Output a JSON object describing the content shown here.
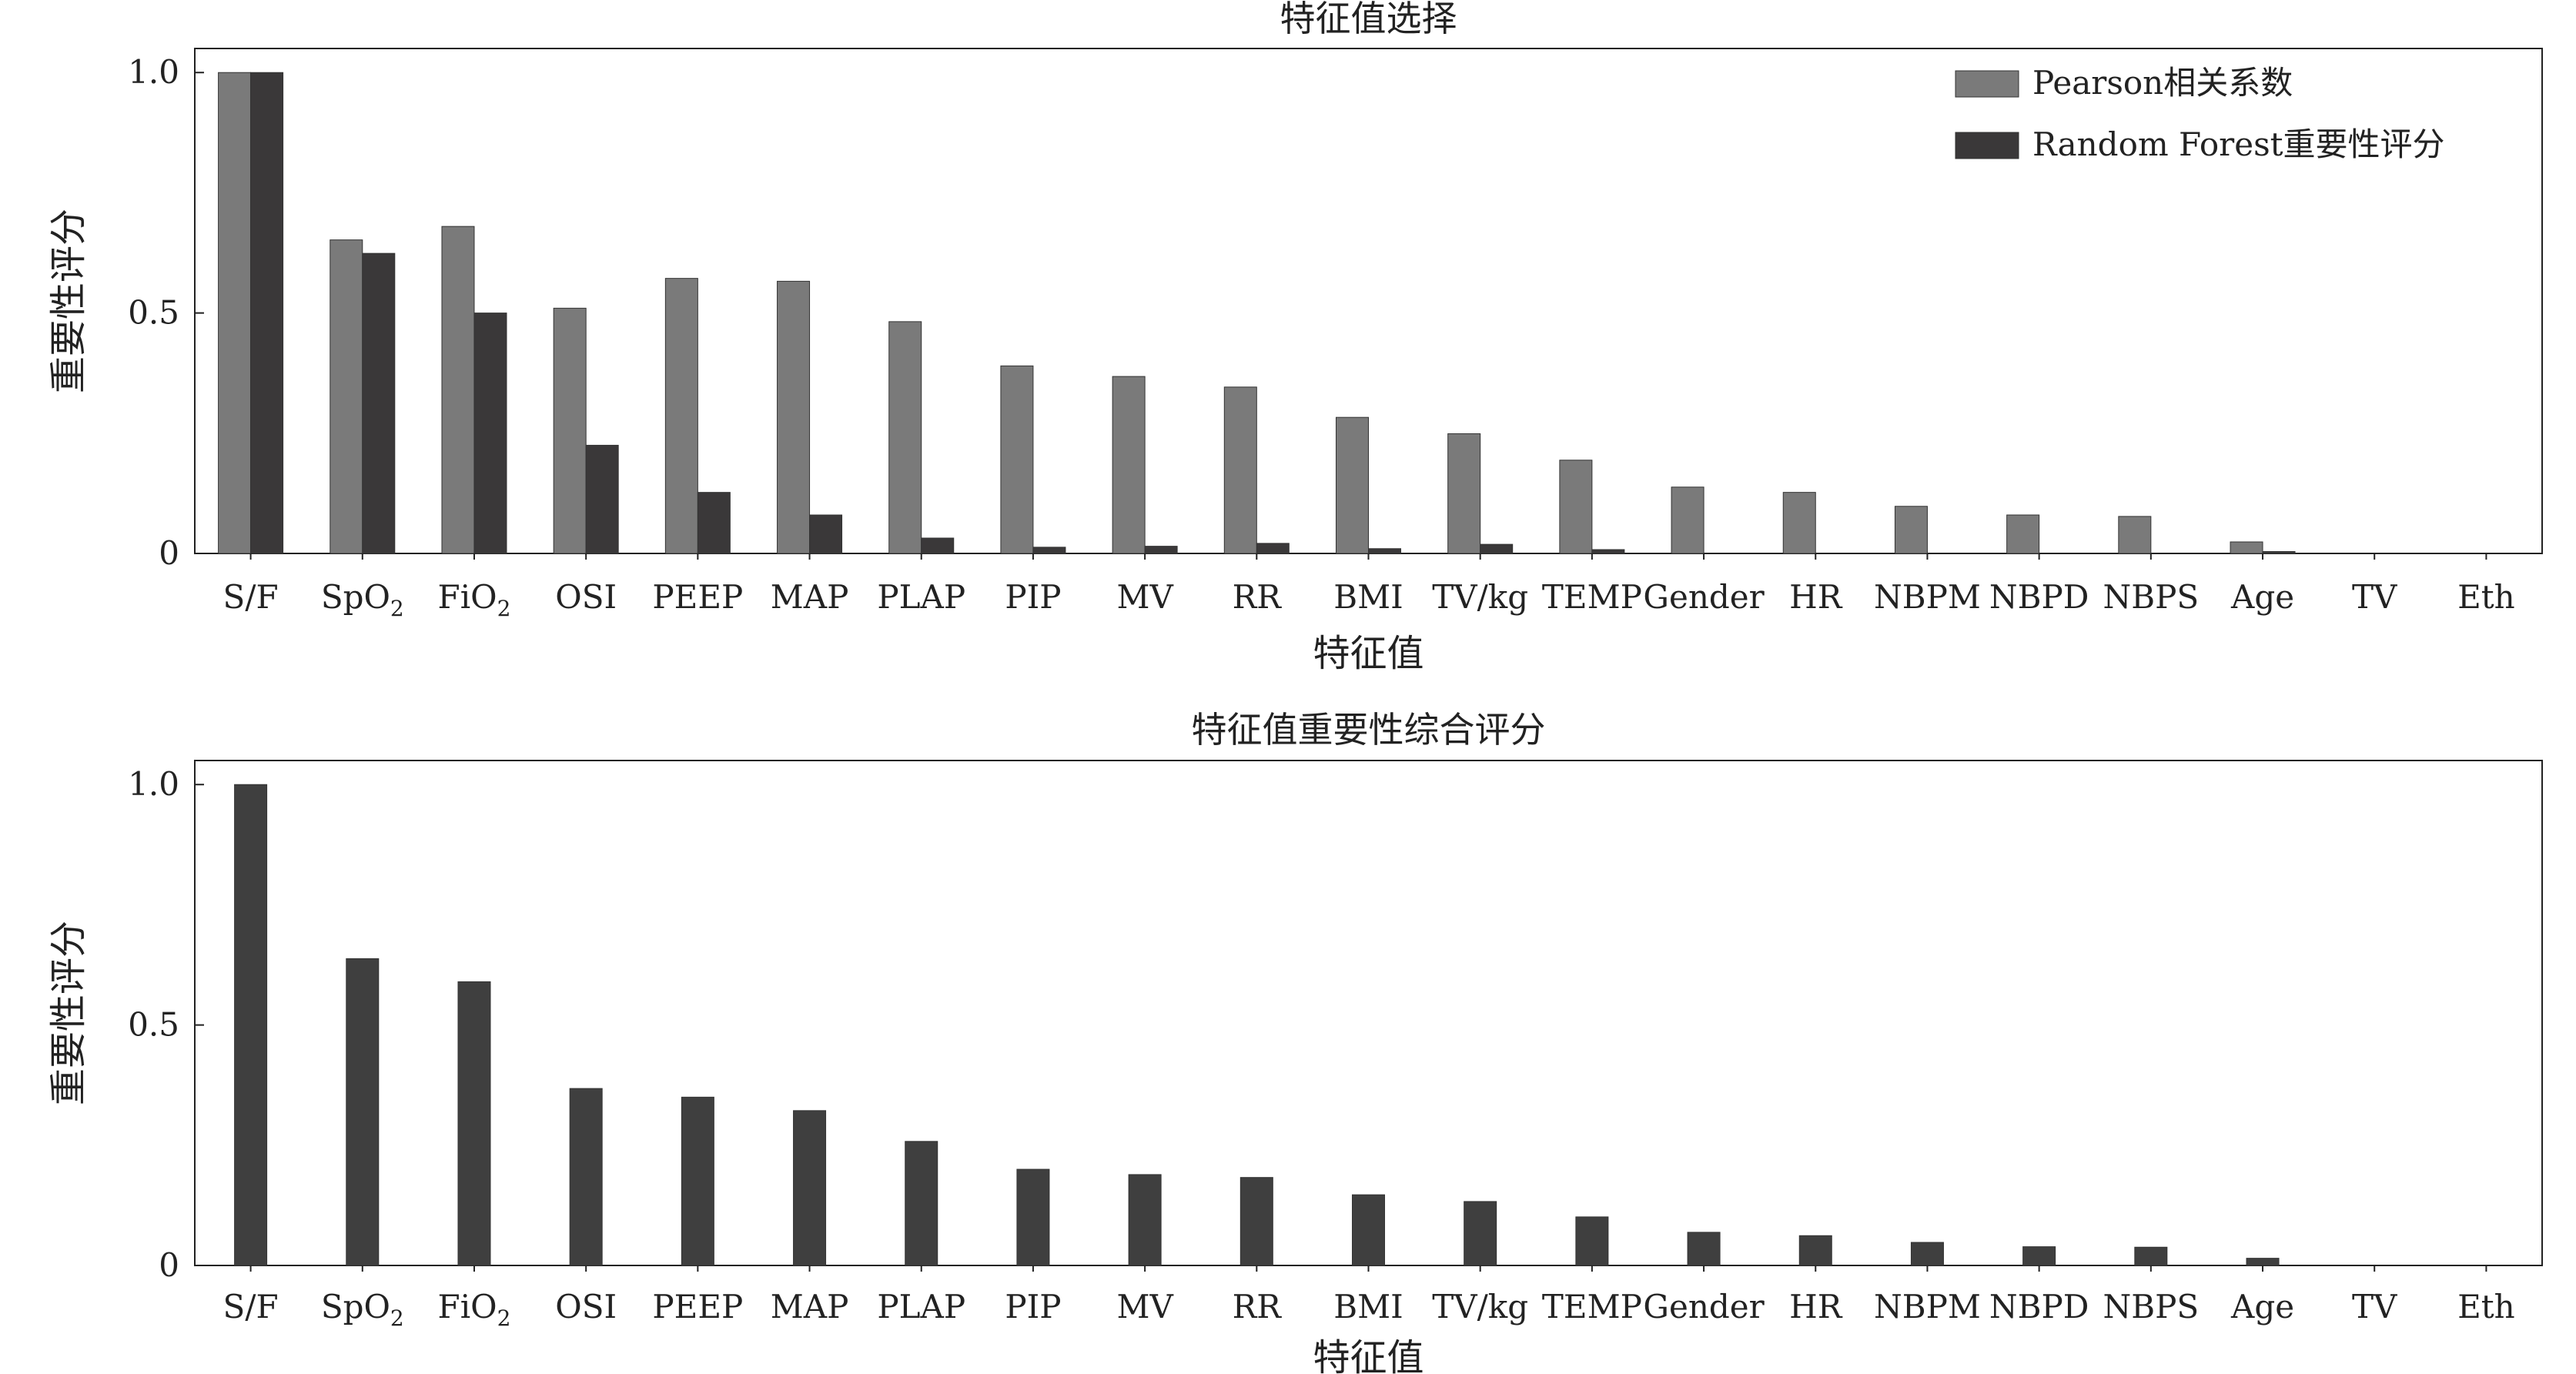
{
  "chart_data": [
    {
      "type": "bar",
      "title": "特征值选择",
      "xlabel": "特征值",
      "ylabel": "重要性评分",
      "ylim": [
        0,
        1.05
      ],
      "yticks": [
        "0",
        "0.5",
        "1.0"
      ],
      "categories": [
        "S/F",
        "SpO2",
        "FiO2",
        "OSI",
        "PEEP",
        "MAP",
        "PLAP",
        "PIP",
        "MV",
        "RR",
        "BMI",
        "TV/kg",
        "TEMP",
        "Gender",
        "HR",
        "NBPM",
        "NBPD",
        "NBPS",
        "Age",
        "TV",
        "Eth"
      ],
      "series": [
        {
          "name": "Pearson相关系数",
          "color": "#7a7a7a",
          "values": [
            1.0,
            0.652,
            0.68,
            0.51,
            0.572,
            0.566,
            0.482,
            0.39,
            0.368,
            0.346,
            0.283,
            0.249,
            0.194,
            0.138,
            0.127,
            0.098,
            0.08,
            0.077,
            0.024,
            0.0,
            0.0
          ]
        },
        {
          "name": "Random Forest重要性评分",
          "color": "#3a3839",
          "values": [
            1.0,
            0.624,
            0.5,
            0.225,
            0.127,
            0.08,
            0.032,
            0.013,
            0.015,
            0.021,
            0.01,
            0.019,
            0.008,
            0.0,
            0.0,
            0.0,
            0.0,
            0.0,
            0.004,
            0.0,
            0.0
          ]
        }
      ],
      "legend": "top-right"
    },
    {
      "type": "bar",
      "title": "特征值重要性综合评分",
      "xlabel": "特征值",
      "ylabel": "重要性评分",
      "ylim": [
        0,
        1.05
      ],
      "yticks": [
        "0",
        "0.5",
        "1.0"
      ],
      "categories": [
        "S/F",
        "SpO2",
        "FiO2",
        "OSI",
        "PEEP",
        "MAP",
        "PLAP",
        "PIP",
        "MV",
        "RR",
        "BMI",
        "TV/kg",
        "TEMP",
        "Gender",
        "HR",
        "NBPM",
        "NBPD",
        "NBPS",
        "Age",
        "TV",
        "Eth"
      ],
      "series": [
        {
          "color": "#3f3f3f",
          "values": [
            1.0,
            0.638,
            0.59,
            0.368,
            0.35,
            0.322,
            0.258,
            0.2,
            0.189,
            0.183,
            0.147,
            0.133,
            0.101,
            0.069,
            0.062,
            0.048,
            0.039,
            0.038,
            0.015,
            0.0,
            0.0
          ]
        }
      ]
    }
  ]
}
